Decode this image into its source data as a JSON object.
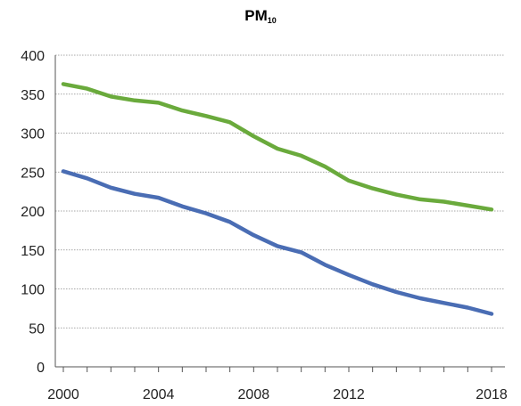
{
  "chart_data": {
    "type": "line",
    "title": "PM",
    "title_subscript": "10",
    "xlabel": "",
    "ylabel": "",
    "xlim": [
      2000,
      2018
    ],
    "ylim": [
      0,
      400
    ],
    "x_ticks": [
      2000,
      2004,
      2008,
      2012,
      2018
    ],
    "y_ticks": [
      0,
      50,
      100,
      150,
      200,
      250,
      300,
      350,
      400
    ],
    "grid": "horizontal dotted",
    "legend": "none",
    "x": [
      2000,
      2001,
      2002,
      2003,
      2004,
      2005,
      2006,
      2007,
      2008,
      2009,
      2010,
      2011,
      2012,
      2013,
      2014,
      2015,
      2016,
      2017,
      2018
    ],
    "series": [
      {
        "color": "#6aaa3c",
        "values": [
          363,
          357,
          347,
          342,
          339,
          329,
          322,
          314,
          296,
          280,
          271,
          257,
          239,
          229,
          221,
          215,
          212,
          207,
          202
        ]
      },
      {
        "color": "#4a6db4",
        "values": [
          251,
          242,
          230,
          222,
          217,
          206,
          197,
          186,
          169,
          155,
          147,
          131,
          118,
          106,
          96,
          88,
          82,
          76,
          68
        ]
      }
    ]
  }
}
